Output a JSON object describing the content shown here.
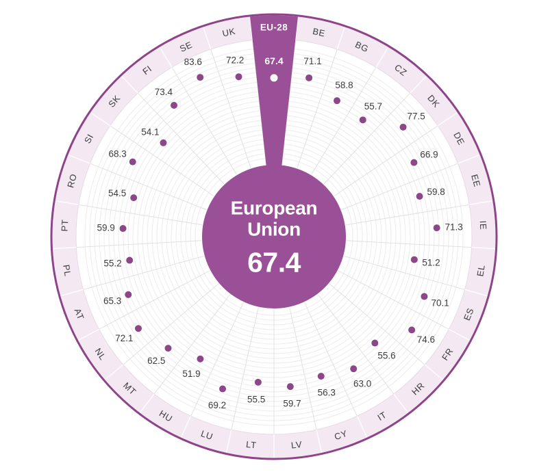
{
  "chart_data": {
    "type": "scatter",
    "layout": "polar-sectors",
    "title": "",
    "center_label": "European Union",
    "center_value": "67.4",
    "highlight": {
      "code": "EU-28",
      "value": 67.4
    },
    "rlim": [
      40,
      90
    ],
    "legend": "none",
    "grid": "on",
    "series": [
      {
        "code": "EU-28",
        "value": 67.4,
        "highlight": true
      },
      {
        "code": "BE",
        "value": 71.1
      },
      {
        "code": "BG",
        "value": 58.8
      },
      {
        "code": "CZ",
        "value": 55.7
      },
      {
        "code": "DK",
        "value": 77.5
      },
      {
        "code": "DE",
        "value": 66.9
      },
      {
        "code": "EE",
        "value": 59.8
      },
      {
        "code": "IE",
        "value": 71.3
      },
      {
        "code": "EL",
        "value": 51.2
      },
      {
        "code": "ES",
        "value": 70.1
      },
      {
        "code": "FR",
        "value": 74.6
      },
      {
        "code": "HR",
        "value": 55.6
      },
      {
        "code": "IT",
        "value": 63.0
      },
      {
        "code": "CY",
        "value": 56.3
      },
      {
        "code": "LV",
        "value": 59.7
      },
      {
        "code": "LT",
        "value": 55.5
      },
      {
        "code": "LU",
        "value": 69.2
      },
      {
        "code": "HU",
        "value": 51.9
      },
      {
        "code": "MT",
        "value": 62.5
      },
      {
        "code": "NL",
        "value": 72.1
      },
      {
        "code": "AT",
        "value": 65.3
      },
      {
        "code": "PL",
        "value": 55.2
      },
      {
        "code": "PT",
        "value": 59.9
      },
      {
        "code": "RO",
        "value": 54.5
      },
      {
        "code": "SI",
        "value": 68.3
      },
      {
        "code": "SK",
        "value": 54.1
      },
      {
        "code": "FI",
        "value": 73.4
      },
      {
        "code": "SE",
        "value": 83.6
      },
      {
        "code": "UK",
        "value": 72.2
      }
    ],
    "colors": {
      "accent": "#9a5096",
      "dot": "#8c4789",
      "band": "#f4e9f3",
      "border": "#8d4489",
      "band_inner_edge": "#e6dbe4",
      "grid_arc": "#edebec",
      "sector_line": "#e2e0e1",
      "band_divider": "#ffffff",
      "label_text": "#3d3d3d",
      "highlight_text": "#ffffff"
    }
  }
}
